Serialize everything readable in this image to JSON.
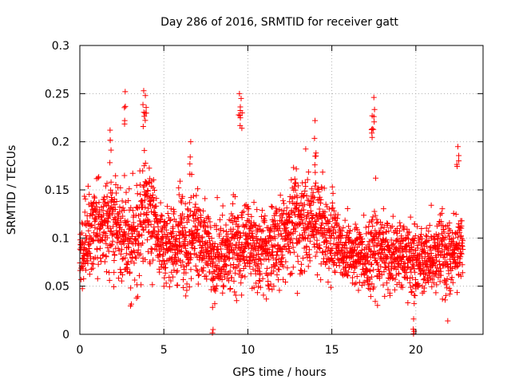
{
  "chart_data": {
    "type": "scatter",
    "title": "Day 286 of 2016, SRMTID for receiver gatt",
    "xlabel": "GPS time / hours",
    "ylabel": "SRMTID / TECUs",
    "xlim": [
      0,
      24
    ],
    "ylim": [
      0,
      0.3
    ],
    "xticks": [
      0,
      5,
      10,
      15,
      20
    ],
    "yticks": [
      0,
      0.05,
      0.1,
      0.15,
      0.2,
      0.25,
      0.3
    ],
    "grid": true,
    "marker": "plus",
    "color": "#ff0000",
    "series": [
      {
        "name": "SRMTID",
        "x_step_hours": 0.00833,
        "x_start": 0.0,
        "x_end": 22.8,
        "profile_hours": [
          0,
          1,
          2,
          3,
          4,
          5,
          6,
          7,
          8,
          9,
          10,
          11,
          12,
          13,
          14,
          15,
          16,
          17,
          18,
          19,
          20,
          21,
          22,
          22.8
        ],
        "profile_mean": [
          0.085,
          0.115,
          0.11,
          0.095,
          0.13,
          0.09,
          0.095,
          0.105,
          0.075,
          0.085,
          0.095,
          0.09,
          0.095,
          0.115,
          0.12,
          0.1,
          0.085,
          0.08,
          0.085,
          0.085,
          0.075,
          0.085,
          0.085,
          0.09
        ],
        "profile_spread": [
          0.035,
          0.04,
          0.04,
          0.045,
          0.05,
          0.035,
          0.04,
          0.04,
          0.035,
          0.04,
          0.04,
          0.035,
          0.04,
          0.045,
          0.045,
          0.035,
          0.03,
          0.035,
          0.035,
          0.035,
          0.03,
          0.035,
          0.035,
          0.03
        ],
        "peaks": [
          {
            "x": 2.7,
            "y": 0.252
          },
          {
            "x": 3.8,
            "y": 0.253
          },
          {
            "x": 3.9,
            "y": 0.248
          },
          {
            "x": 9.5,
            "y": 0.25
          },
          {
            "x": 9.6,
            "y": 0.245
          },
          {
            "x": 17.5,
            "y": 0.246
          },
          {
            "x": 14.0,
            "y": 0.222
          },
          {
            "x": 17.4,
            "y": 0.227
          },
          {
            "x": 22.5,
            "y": 0.195
          },
          {
            "x": 1.8,
            "y": 0.212
          },
          {
            "x": 6.6,
            "y": 0.2
          },
          {
            "x": 21.9,
            "y": 0.014
          },
          {
            "x": 7.9,
            "y": 0.028
          },
          {
            "x": 19.9,
            "y": 0.032
          }
        ]
      }
    ]
  }
}
